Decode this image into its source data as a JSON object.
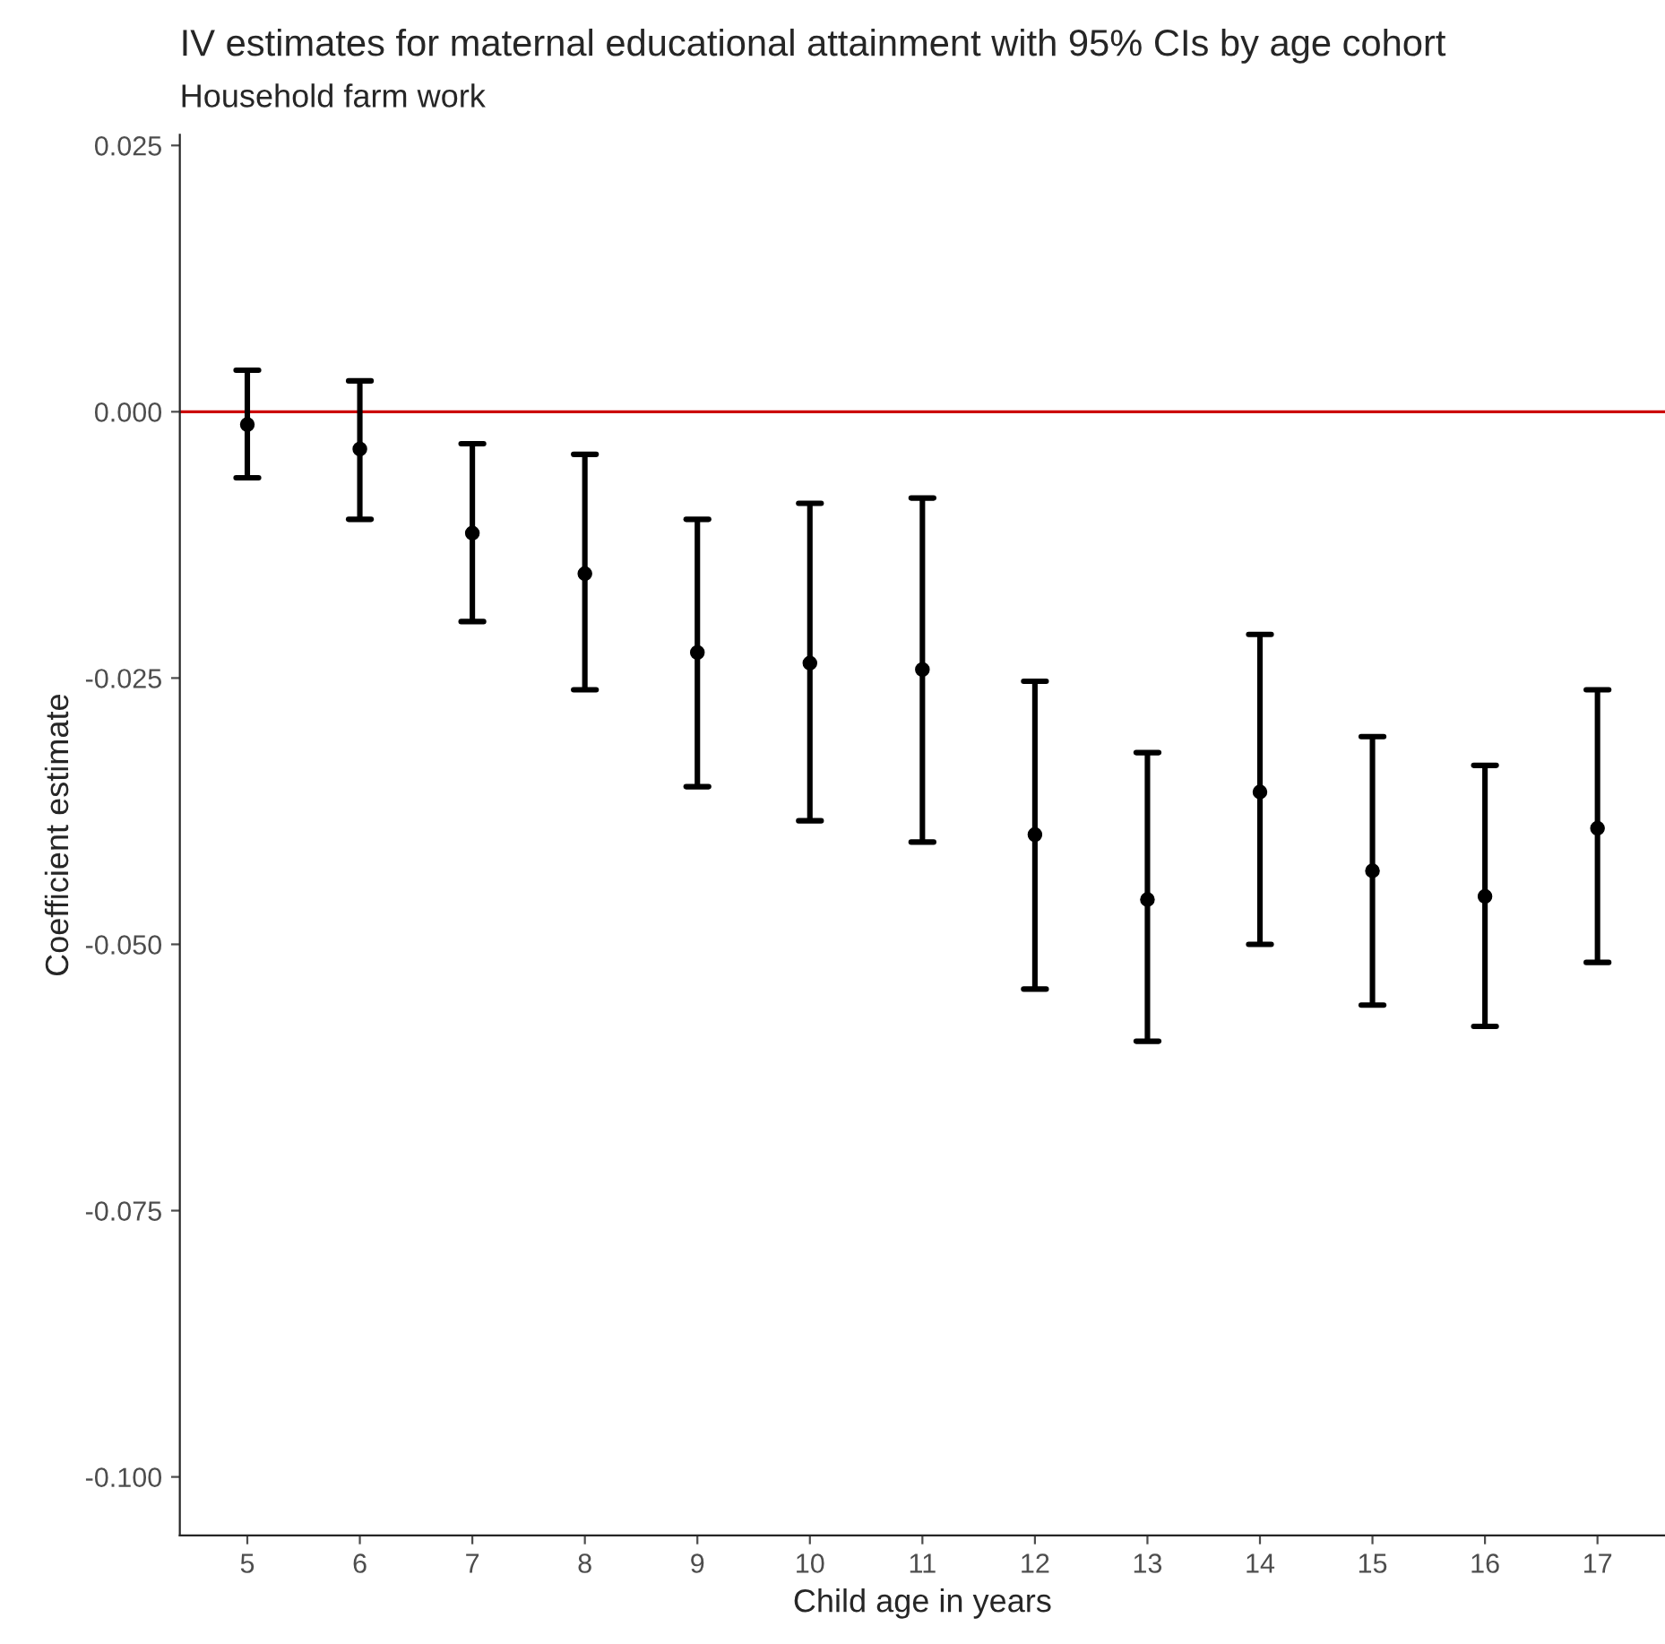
{
  "chart_data": {
    "type": "scatter",
    "title": "IV estimates for maternal educational attainment with 95% CIs by age cohort",
    "subtitle": "Household farm work",
    "xlabel": "Child age in years",
    "ylabel": "Coefficient estimate",
    "categories": [
      "5",
      "6",
      "7",
      "8",
      "9",
      "10",
      "11",
      "12",
      "13",
      "14",
      "15",
      "16",
      "17"
    ],
    "series": [
      {
        "color": "#000000",
        "values": [
          -0.0012,
          -0.0035,
          -0.0114,
          -0.0152,
          -0.0226,
          -0.0236,
          -0.0242,
          -0.0397,
          -0.0458,
          -0.0357,
          -0.0431,
          -0.0455,
          -0.0391
        ],
        "errors": [
          [
            -0.0062,
            0.0039
          ],
          [
            -0.0101,
            0.0029
          ],
          [
            -0.0197,
            -0.003
          ],
          [
            -0.0261,
            -0.004
          ],
          [
            -0.0352,
            -0.0101
          ],
          [
            -0.0384,
            -0.0086
          ],
          [
            -0.0404,
            -0.0081
          ],
          [
            -0.0542,
            -0.0253
          ],
          [
            -0.0591,
            -0.032
          ],
          [
            -0.05,
            -0.0209
          ],
          [
            -0.0557,
            -0.0305
          ],
          [
            -0.0577,
            -0.0332
          ],
          [
            -0.0517,
            -0.0261
          ]
        ]
      }
    ],
    "ylim": [
      -0.1055,
      0.026
    ],
    "yticks": [
      {
        "value": 0.025,
        "label": "0.025"
      },
      {
        "value": 0,
        "label": "0.000"
      },
      {
        "value": -0.025,
        "label": "-0.025"
      },
      {
        "value": -0.05,
        "label": "-0.050"
      },
      {
        "value": -0.075,
        "label": "-0.075"
      },
      {
        "value": -0.1,
        "label": "-0.100"
      }
    ],
    "ref_lines": [
      {
        "axis": "y",
        "value": 0,
        "color": "#cc0000"
      }
    ],
    "marker": "circle",
    "grid": false,
    "legend": false
  }
}
